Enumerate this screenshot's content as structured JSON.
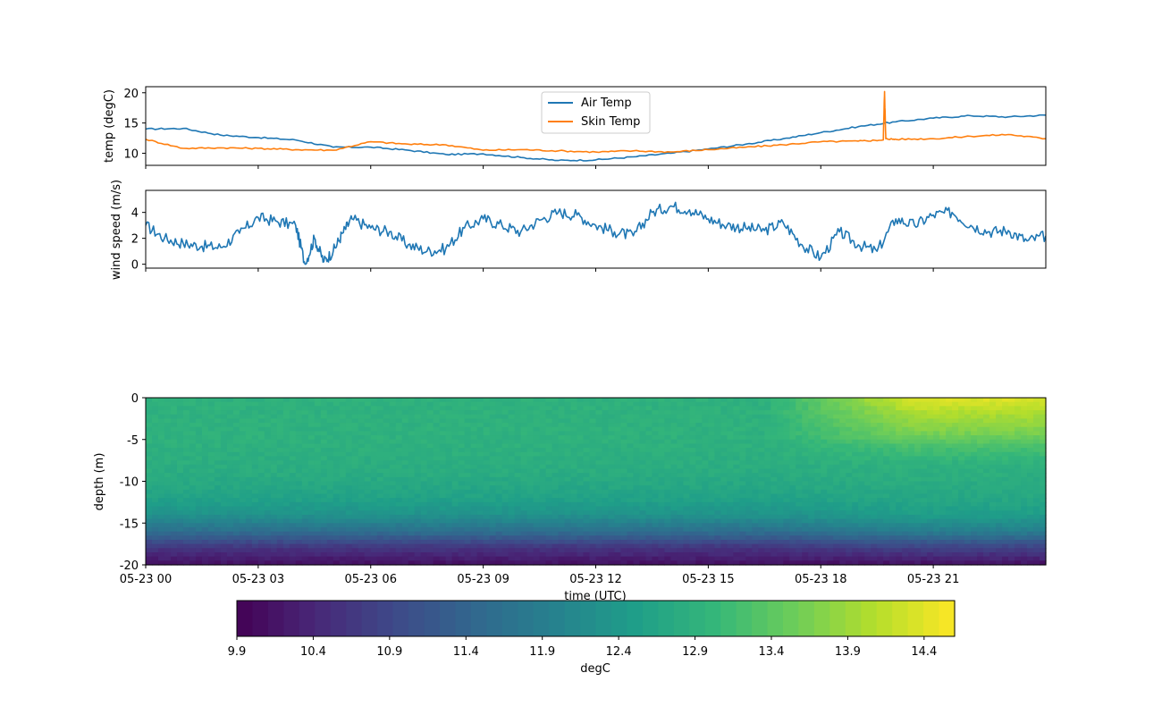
{
  "chart_data": [
    {
      "type": "line",
      "ylabel": "temp (degC)",
      "ylim": [
        8,
        21
      ],
      "yticks": [
        10,
        15,
        20
      ],
      "xlim": [
        "05-23 00:00",
        "05-24 00:00"
      ],
      "legend": "upper-center",
      "series": [
        {
          "name": "Air Temp",
          "color": "#1f77b4",
          "x": [
            "05-23 00:00",
            "05-23 01:00",
            "05-23 02:00",
            "05-23 03:00",
            "05-23 04:00",
            "05-23 05:00",
            "05-23 06:00",
            "05-23 07:00",
            "05-23 08:00",
            "05-23 09:00",
            "05-23 10:00",
            "05-23 11:00",
            "05-23 12:00",
            "05-23 13:00",
            "05-23 14:00",
            "05-23 15:00",
            "05-23 16:00",
            "05-23 17:00",
            "05-23 18:00",
            "05-23 19:00",
            "05-23 20:00",
            "05-23 21:00",
            "05-23 22:00",
            "05-23 23:00",
            "05-24 00:00"
          ],
          "values": [
            14.0,
            14.1,
            13.0,
            12.6,
            12.2,
            11.0,
            11.0,
            10.5,
            9.8,
            9.9,
            9.3,
            8.8,
            8.9,
            9.4,
            10.0,
            10.7,
            11.5,
            12.4,
            13.4,
            14.4,
            15.2,
            15.8,
            16.2,
            16.0,
            16.3
          ]
        },
        {
          "name": "Skin Temp",
          "color": "#ff7f0e",
          "x": [
            "05-23 00:00",
            "05-23 01:00",
            "05-23 02:00",
            "05-23 03:00",
            "05-23 04:00",
            "05-23 05:00",
            "05-23 06:00",
            "05-23 07:00",
            "05-23 08:00",
            "05-23 09:00",
            "05-23 10:00",
            "05-23 11:00",
            "05-23 12:00",
            "05-23 13:00",
            "05-23 14:00",
            "05-23 15:00",
            "05-23 16:00",
            "05-23 17:00",
            "05-23 18:00",
            "05-23 19:00",
            "05-23 19:40",
            "05-23 19:42",
            "05-23 19:44",
            "05-23 20:00",
            "05-23 21:00",
            "05-23 22:00",
            "05-23 23:00",
            "05-24 00:00"
          ],
          "values": [
            12.3,
            10.8,
            10.9,
            10.8,
            10.6,
            10.5,
            11.9,
            11.5,
            11.4,
            10.5,
            10.6,
            10.4,
            10.2,
            10.4,
            10.2,
            10.6,
            11.0,
            11.4,
            11.9,
            12.0,
            12.2,
            20.2,
            12.4,
            12.3,
            12.4,
            12.8,
            13.1,
            12.4
          ]
        }
      ]
    },
    {
      "type": "line",
      "ylabel": "wind speed (m/s)",
      "ylim": [
        -0.3,
        5.7
      ],
      "yticks": [
        0,
        2,
        4
      ],
      "xlim": [
        "05-23 00:00",
        "05-24 00:00"
      ],
      "series": [
        {
          "color": "#1f77b4",
          "x": [
            "05-23 00:00",
            "05-23 00:30",
            "05-23 01:00",
            "05-23 01:30",
            "05-23 02:00",
            "05-23 02:30",
            "05-23 03:00",
            "05-23 03:30",
            "05-23 04:00",
            "05-23 04:15",
            "05-23 04:30",
            "05-23 04:45",
            "05-23 05:00",
            "05-23 05:15",
            "05-23 05:30",
            "05-23 06:00",
            "05-23 06:30",
            "05-23 07:00",
            "05-23 07:30",
            "05-23 08:00",
            "05-23 08:30",
            "05-23 09:00",
            "05-23 09:30",
            "05-23 10:00",
            "05-23 10:30",
            "05-23 11:00",
            "05-23 11:30",
            "05-23 12:00",
            "05-23 12:30",
            "05-23 13:00",
            "05-23 13:30",
            "05-23 14:00",
            "05-23 14:30",
            "05-23 15:00",
            "05-23 15:30",
            "05-23 16:00",
            "05-23 16:30",
            "05-23 17:00",
            "05-23 17:30",
            "05-23 18:00",
            "05-23 18:30",
            "05-23 19:00",
            "05-23 19:30",
            "05-23 20:00",
            "05-23 20:30",
            "05-23 21:00",
            "05-23 21:30",
            "05-23 22:00",
            "05-23 22:30",
            "05-23 23:00",
            "05-23 23:30",
            "05-24 00:00"
          ],
          "values": [
            3.0,
            2.0,
            1.6,
            1.4,
            1.3,
            2.4,
            3.6,
            3.3,
            3.0,
            0.0,
            2.0,
            0.2,
            1.0,
            2.4,
            3.5,
            2.8,
            2.5,
            1.5,
            1.0,
            1.2,
            2.8,
            3.5,
            3.0,
            2.5,
            3.4,
            4.0,
            3.8,
            3.0,
            2.5,
            2.2,
            4.0,
            4.5,
            4.2,
            3.5,
            3.0,
            2.8,
            2.6,
            3.2,
            1.5,
            0.5,
            2.5,
            1.5,
            1.0,
            3.5,
            3.0,
            3.8,
            4.0,
            3.0,
            2.5,
            2.6,
            1.8,
            2.2
          ]
        }
      ]
    },
    {
      "type": "heatmap",
      "ylabel": "depth (m)",
      "xlabel": "time (UTC)",
      "ylim": [
        -20,
        0
      ],
      "yticks": [
        0,
        -5,
        -10,
        -15,
        -20
      ],
      "xticklabels": [
        "05-23 00",
        "05-23 03",
        "05-23 06",
        "05-23 09",
        "05-23 12",
        "05-23 15",
        "05-23 18",
        "05-23 21"
      ],
      "xtick_hours": [
        0,
        3,
        6,
        9,
        12,
        15,
        18,
        21
      ],
      "depth_profile_early": [
        {
          "depth": 0,
          "value": 12.9
        },
        {
          "depth": -5,
          "value": 12.9
        },
        {
          "depth": -9,
          "value": 12.8
        },
        {
          "depth": -12,
          "value": 12.6
        },
        {
          "depth": -14,
          "value": 12.3
        },
        {
          "depth": -16,
          "value": 11.6
        },
        {
          "depth": -18,
          "value": 10.6
        },
        {
          "depth": -20,
          "value": 10.1
        }
      ],
      "depth_profile_late": [
        {
          "depth": 0,
          "value": 14.4
        },
        {
          "depth": -2,
          "value": 14.0
        },
        {
          "depth": -4,
          "value": 13.7
        },
        {
          "depth": -6,
          "value": 13.2
        },
        {
          "depth": -8,
          "value": 12.9
        },
        {
          "depth": -12,
          "value": 12.7
        },
        {
          "depth": -14,
          "value": 12.5
        },
        {
          "depth": -16,
          "value": 11.9
        },
        {
          "depth": -18,
          "value": 10.8
        },
        {
          "depth": -20,
          "value": 10.1
        }
      ],
      "colormap": "viridis",
      "vmin": 9.9,
      "vmax": 14.6
    }
  ],
  "colorbar": {
    "label": "degC",
    "ticks": [
      "9.9",
      "10.4",
      "10.9",
      "11.4",
      "11.9",
      "12.4",
      "12.9",
      "13.4",
      "13.9",
      "14.4"
    ]
  }
}
